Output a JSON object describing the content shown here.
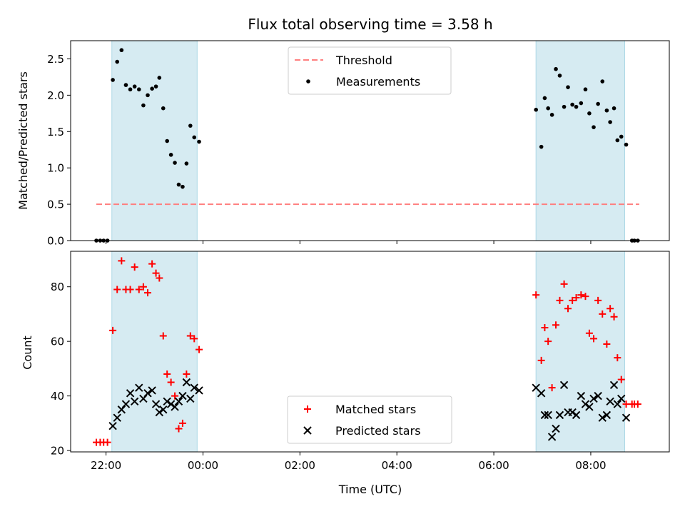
{
  "chart_data": {
    "type": "scatter",
    "title": "Flux total observing time = 3.58 h",
    "xlabel": "Time (UTC)",
    "x_ticks": [
      "22:00",
      "00:00",
      "02:00",
      "04:00",
      "06:00",
      "08:00"
    ],
    "x_tick_hours": [
      22,
      24,
      26,
      28,
      30,
      32
    ],
    "xlim_hours": [
      21.27,
      33.62
    ],
    "shaded_spans_hours": [
      [
        22.12,
        23.88
      ],
      [
        30.87,
        32.7
      ]
    ],
    "span_color": "#add8e6",
    "panels": [
      {
        "ylabel": "Matched/Predicted stars",
        "ylim": [
          0,
          2.75
        ],
        "y_ticks": [
          0.0,
          0.5,
          1.0,
          1.5,
          2.0,
          2.5
        ],
        "y_tick_labels": [
          "0.0",
          "0.5",
          "1.0",
          "1.5",
          "2.0",
          "2.5"
        ],
        "legend": [
          "Threshold",
          "Measurements"
        ],
        "series": [
          {
            "name": "Threshold",
            "kind": "dashed-line",
            "color": "#ff7f7f",
            "x": [
              21.8,
              33.0
            ],
            "y": [
              0.5,
              0.5
            ]
          },
          {
            "name": "Measurements",
            "kind": "dot",
            "color": "#000000",
            "x": [
              21.8,
              21.88,
              21.95,
              22.03,
              22.14,
              22.23,
              22.32,
              22.41,
              22.5,
              22.59,
              22.68,
              22.77,
              22.86,
              22.95,
              23.03,
              23.1,
              23.18,
              23.26,
              23.34,
              23.42,
              23.5,
              23.58,
              23.66,
              23.74,
              23.82,
              23.92,
              30.87,
              30.98,
              31.05,
              31.12,
              31.2,
              31.28,
              31.36,
              31.45,
              31.53,
              31.62,
              31.7,
              31.8,
              31.89,
              31.97,
              32.06,
              32.15,
              32.24,
              32.33,
              32.4,
              32.48,
              32.55,
              32.63,
              32.73,
              32.85,
              32.9,
              32.97
            ],
            "y": [
              0,
              0,
              0,
              0,
              2.21,
              2.46,
              2.62,
              2.14,
              2.08,
              2.12,
              2.08,
              1.86,
              2.0,
              2.09,
              2.12,
              2.24,
              1.82,
              1.37,
              1.18,
              1.07,
              0.77,
              0.74,
              1.06,
              1.58,
              1.42,
              1.36,
              1.8,
              1.29,
              1.96,
              1.82,
              1.73,
              2.36,
              2.27,
              1.84,
              2.11,
              1.87,
              1.84,
              1.89,
              2.08,
              1.75,
              1.56,
              1.88,
              2.19,
              1.79,
              1.63,
              1.82,
              1.38,
              1.43,
              1.32,
              0,
              0,
              0
            ]
          }
        ]
      },
      {
        "ylabel": "Count",
        "ylim": [
          19.5,
          93
        ],
        "y_ticks": [
          20,
          40,
          60,
          80
        ],
        "y_tick_labels": [
          "20",
          "40",
          "60",
          "80"
        ],
        "legend": [
          "Matched stars",
          "Predicted stars"
        ],
        "series": [
          {
            "name": "Matched stars",
            "kind": "plus",
            "color": "#ff0000",
            "x": [
              21.8,
              21.88,
              21.95,
              22.03,
              22.14,
              22.23,
              22.32,
              22.41,
              22.5,
              22.59,
              22.68,
              22.77,
              22.86,
              22.95,
              23.03,
              23.1,
              23.18,
              23.26,
              23.34,
              23.42,
              23.5,
              23.58,
              23.66,
              23.74,
              23.82,
              23.92,
              30.87,
              30.98,
              31.05,
              31.12,
              31.2,
              31.28,
              31.36,
              31.45,
              31.53,
              31.62,
              31.7,
              31.8,
              31.89,
              31.97,
              32.06,
              32.15,
              32.24,
              32.33,
              32.4,
              32.48,
              32.55,
              32.63,
              32.73,
              32.85,
              32.9,
              32.97
            ],
            "y": [
              23,
              23,
              23,
              23,
              64,
              79,
              89.5,
              79,
              79,
              87.2,
              79,
              80,
              77.8,
              88.4,
              85,
              83.2,
              62,
              48,
              45,
              40,
              28,
              30,
              48,
              62,
              61,
              57,
              77,
              53,
              65,
              60,
              43,
              66,
              75,
              81,
              72,
              75,
              76,
              77,
              76.5,
              63,
              61,
              75,
              70,
              59,
              72,
              69,
              54,
              46,
              37,
              37,
              37,
              37
            ]
          },
          {
            "name": "Predicted stars",
            "kind": "x",
            "color": "#000000",
            "x": [
              22.14,
              22.23,
              22.32,
              22.41,
              22.5,
              22.59,
              22.68,
              22.77,
              22.86,
              22.95,
              23.03,
              23.1,
              23.18,
              23.26,
              23.34,
              23.42,
              23.5,
              23.58,
              23.66,
              23.74,
              23.82,
              23.92,
              30.87,
              30.98,
              31.05,
              31.12,
              31.2,
              31.28,
              31.36,
              31.45,
              31.53,
              31.62,
              31.7,
              31.8,
              31.89,
              31.97,
              32.06,
              32.15,
              32.24,
              32.33,
              32.4,
              32.48,
              32.55,
              32.63,
              32.73
            ],
            "y": [
              29,
              32,
              35,
              37,
              41,
              38,
              43,
              39,
              41,
              42,
              37,
              34,
              35,
              38,
              37,
              36,
              38,
              40,
              45,
              39,
              43,
              42,
              43,
              41,
              33,
              33,
              25,
              28,
              33,
              44,
              34,
              34,
              33,
              40,
              37,
              36,
              39,
              40,
              32,
              33,
              38,
              44,
              37,
              39,
              32
            ]
          }
        ]
      }
    ]
  }
}
